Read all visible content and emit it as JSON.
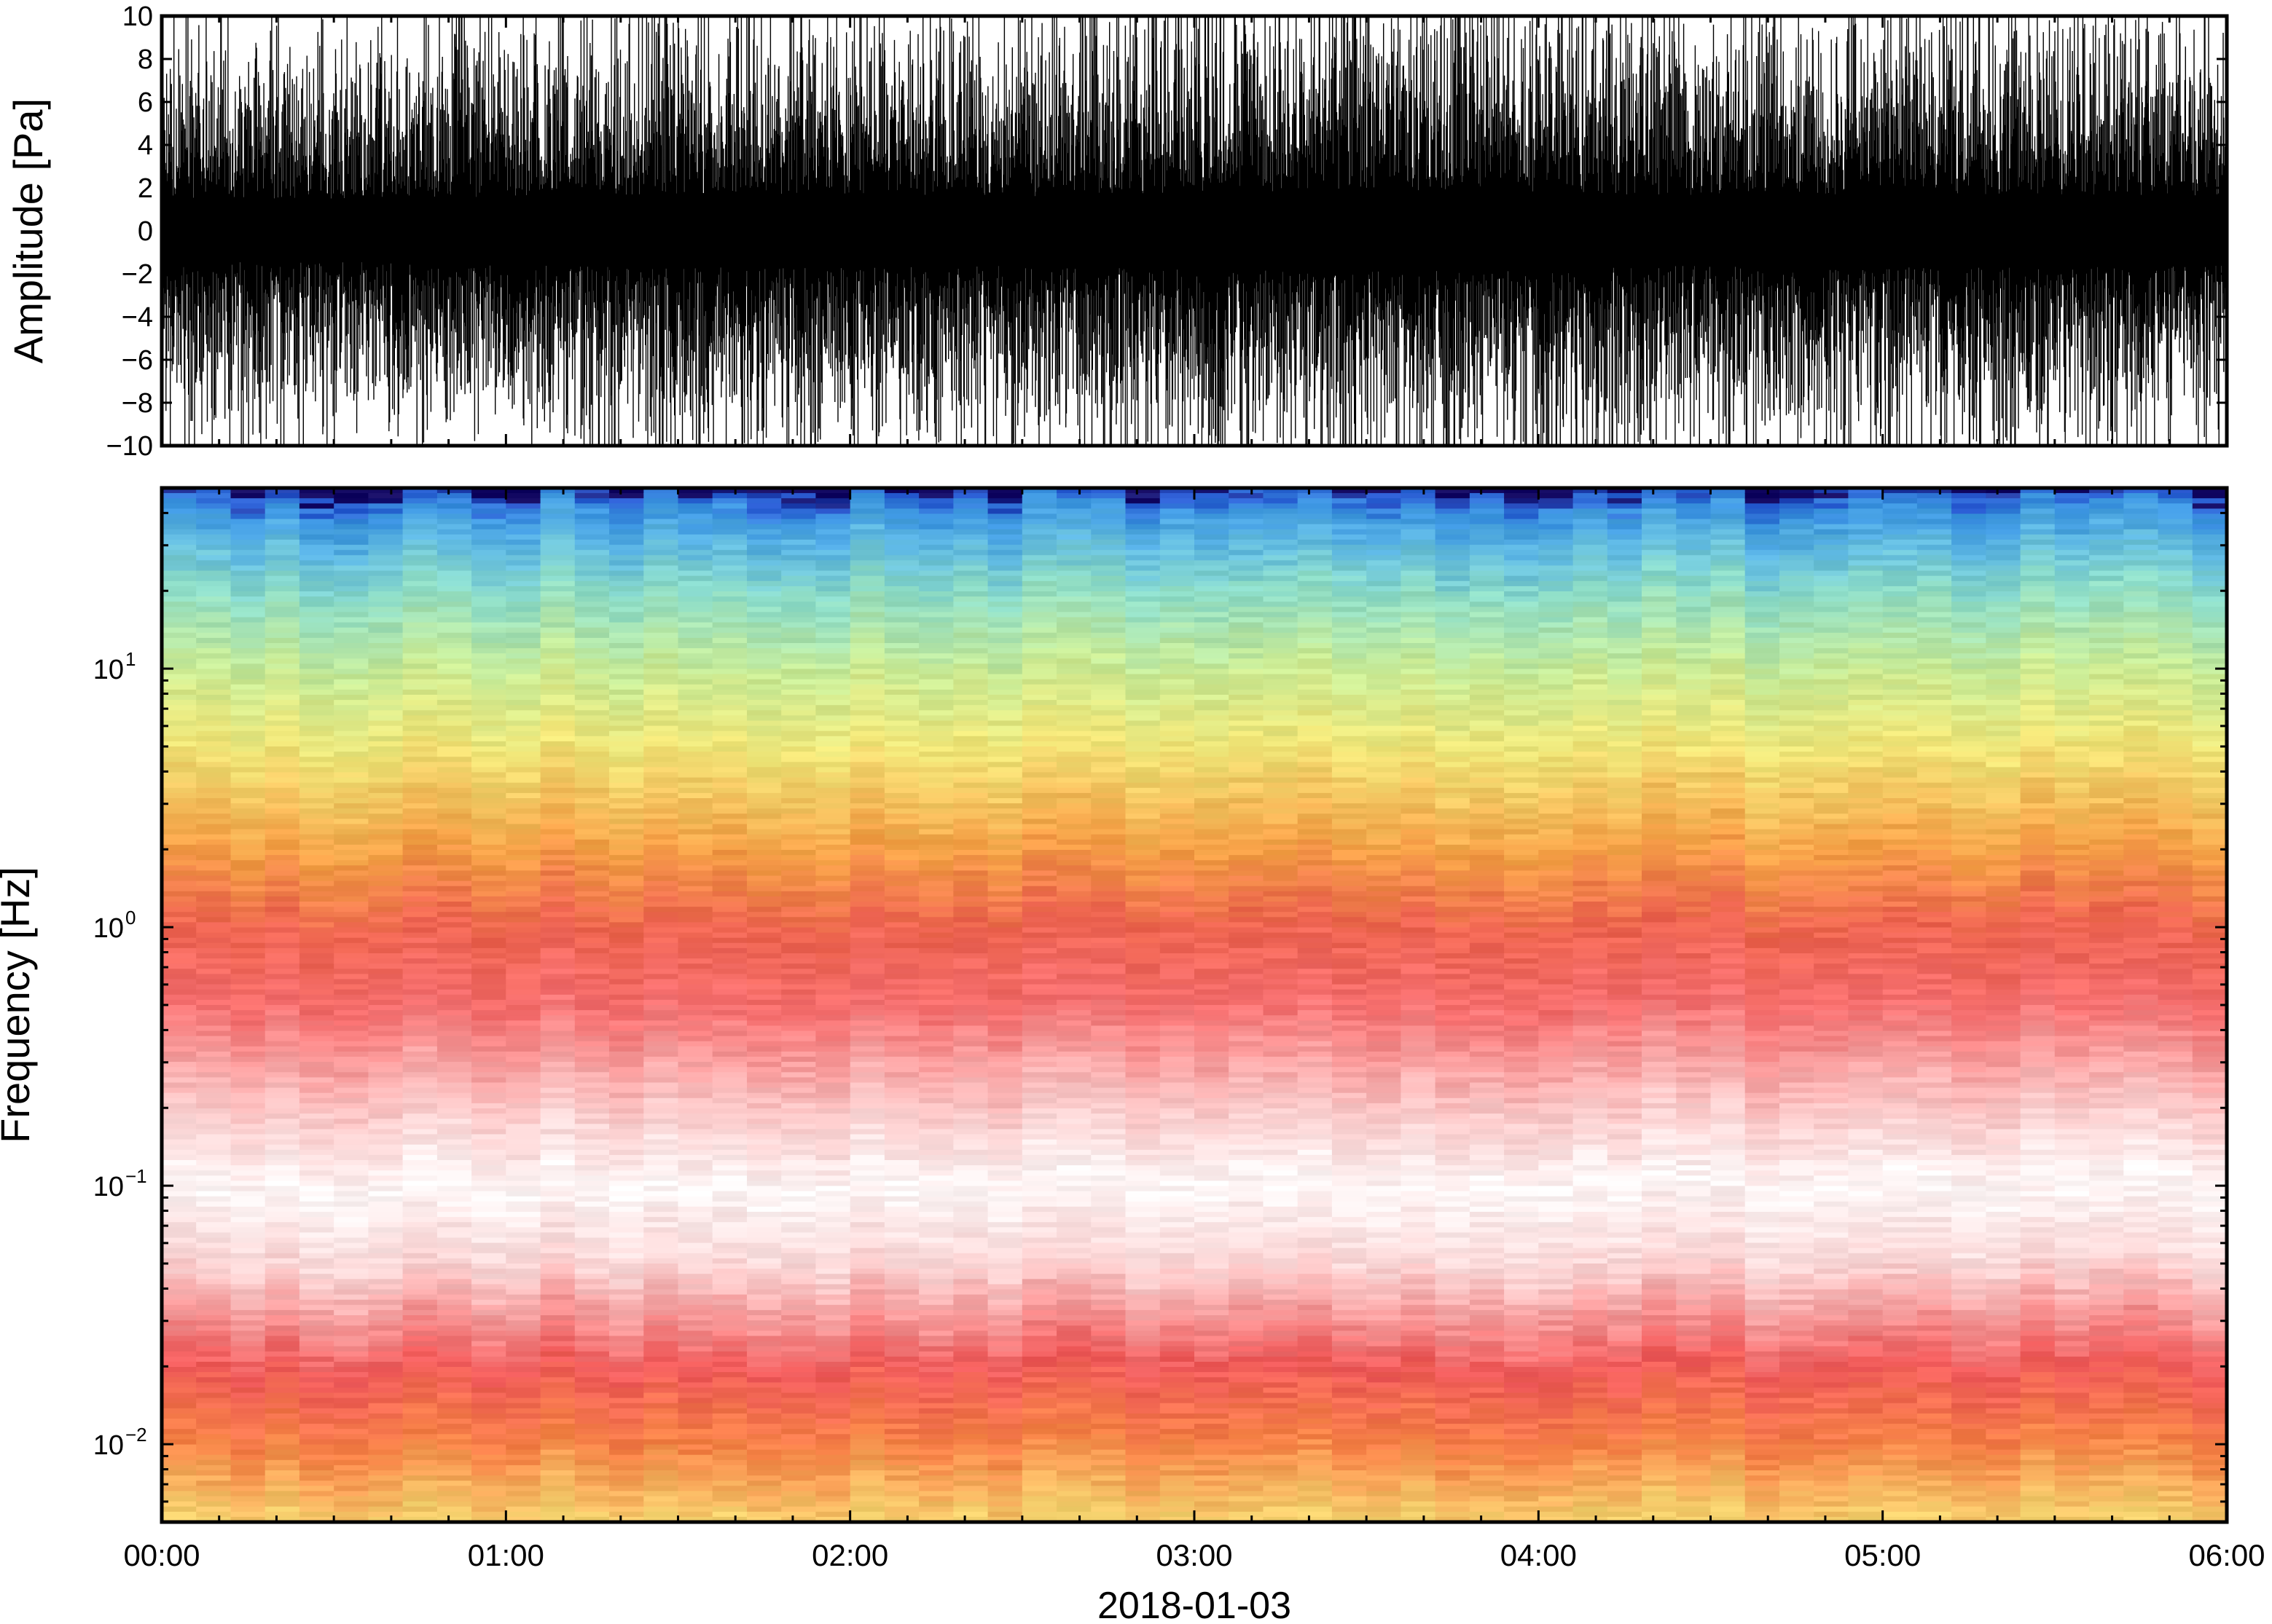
{
  "chart_data": [
    {
      "type": "line",
      "panel": "waveform",
      "ylabel": "Amplitude [Pa]",
      "ylim": [
        -10,
        10
      ],
      "yticks": [
        10,
        8,
        6,
        4,
        2,
        0,
        -2,
        -4,
        -6,
        -8,
        -10
      ],
      "ytick_labels": [
        "10",
        "8",
        "6",
        "4",
        "2",
        "0",
        "−2",
        "−4",
        "−6",
        "−8",
        "−10"
      ],
      "xlim_hours": [
        0,
        6
      ],
      "series": [
        {
          "x_hours": [
            0.0,
            0.5,
            1.0,
            1.5,
            2.0,
            2.5,
            3.0,
            3.5,
            4.0,
            4.5,
            5.0,
            5.5,
            6.0
          ],
          "envelope_typical_pa": [
            7.5,
            7,
            8,
            8.5,
            8.5,
            8,
            9,
            9.5,
            9,
            8,
            8.5,
            8.5,
            8
          ],
          "clipped_at": 10
        }
      ],
      "grid": false,
      "color": "#000000"
    },
    {
      "type": "heatmap",
      "panel": "spectrogram",
      "ylabel": "Frequency [Hz]",
      "yscale": "log",
      "ylim": [
        0.005,
        50
      ],
      "yticks": [
        0.01,
        0.1,
        1,
        10
      ],
      "ytick_labels": [
        {
          "base": "10",
          "exp": "−2"
        },
        {
          "base": "10",
          "exp": "−1"
        },
        {
          "base": "10",
          "exp": "0"
        },
        {
          "base": "10",
          "exp": "1"
        }
      ],
      "xlim_hours": [
        0,
        6
      ],
      "xticks_hours": [
        0,
        1,
        2,
        3,
        4,
        5,
        6
      ],
      "xtick_labels": [
        "00:00",
        "01:00",
        "02:00",
        "03:00",
        "04:00",
        "05:00",
        "06:00"
      ],
      "xlabel": "2018‑01‑03",
      "frequency_hz": [
        50,
        47,
        40,
        30,
        20,
        10,
        5,
        2,
        1,
        0.5,
        0.2,
        0.1,
        0.05,
        0.02,
        0.01,
        0.005
      ],
      "color_profile_rgb": [
        [
          20,
          10,
          100
        ],
        [
          40,
          90,
          210
        ],
        [
          60,
          150,
          225
        ],
        [
          95,
          185,
          225
        ],
        [
          140,
          220,
          200
        ],
        [
          200,
          235,
          150
        ],
        [
          240,
          230,
          120
        ],
        [
          245,
          160,
          70
        ],
        [
          238,
          100,
          80
        ],
        [
          245,
          110,
          110
        ],
        [
          252,
          200,
          200
        ],
        [
          255,
          248,
          248
        ],
        [
          252,
          215,
          215
        ],
        [
          240,
          90,
          90
        ],
        [
          246,
          130,
          70
        ],
        [
          245,
          210,
          110
        ]
      ],
      "colormap": "rainbow-white-red (blue high freq, white ~0.1 Hz, red/orange low freq)",
      "grid": false
    }
  ]
}
